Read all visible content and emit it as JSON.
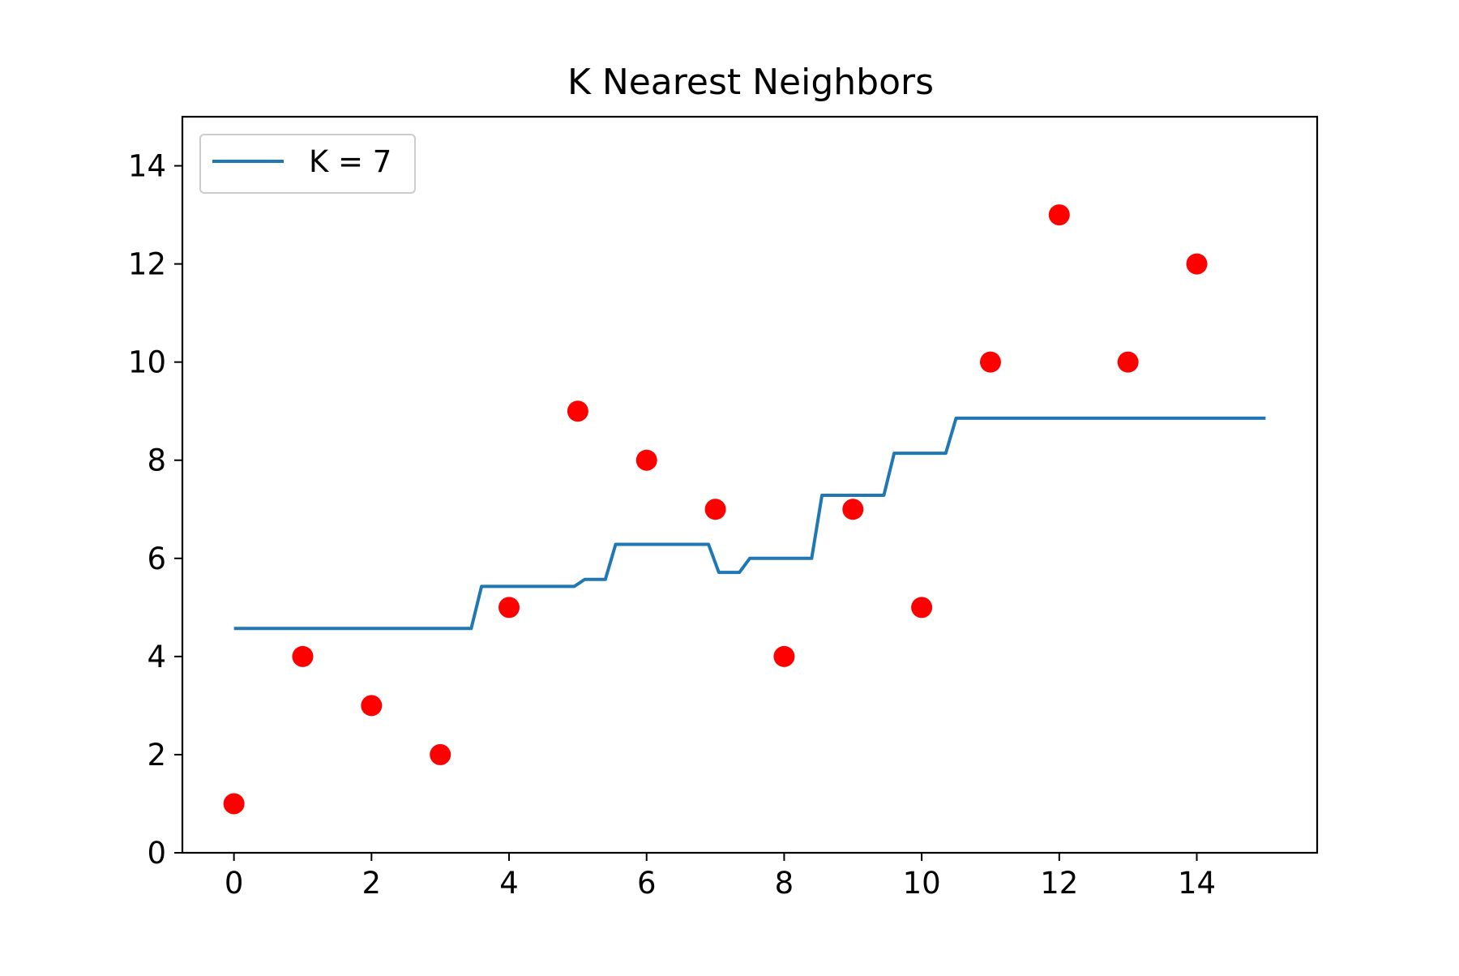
{
  "chart_data": {
    "type": "line",
    "title": "K Nearest Neighbors",
    "xlabel": "",
    "ylabel": "",
    "xlim": [
      -0.75,
      15.75
    ],
    "ylim": [
      0,
      15
    ],
    "xticks": [
      0,
      2,
      4,
      6,
      8,
      10,
      12,
      14
    ],
    "yticks": [
      0,
      2,
      4,
      6,
      8,
      10,
      12,
      14
    ],
    "grid": false,
    "legend_position": "upper left",
    "colors": {
      "line": "#1f77b4",
      "points": "#ff0000",
      "axes": "#000000",
      "legend_border": "#cccccc"
    },
    "points": {
      "x": [
        0,
        1,
        2,
        3,
        4,
        5,
        6,
        7,
        8,
        9,
        10,
        11,
        12,
        13,
        14
      ],
      "y": [
        1,
        4,
        3,
        2,
        5,
        9,
        8,
        7,
        4,
        7,
        5,
        10,
        13,
        10,
        12
      ]
    },
    "series": [
      {
        "name": "K = 7",
        "x": [
          0,
          3.45,
          3.6,
          4.95,
          5.1,
          5.4,
          5.55,
          6.9,
          7.05,
          7.35,
          7.5,
          8.4,
          8.55,
          9.45,
          9.6,
          10.35,
          10.5,
          15
        ],
        "y": [
          4.571,
          4.571,
          5.429,
          5.429,
          5.571,
          5.571,
          6.286,
          6.286,
          5.714,
          5.714,
          6.0,
          6.0,
          7.286,
          7.286,
          8.143,
          8.143,
          8.857,
          8.857
        ]
      }
    ]
  }
}
